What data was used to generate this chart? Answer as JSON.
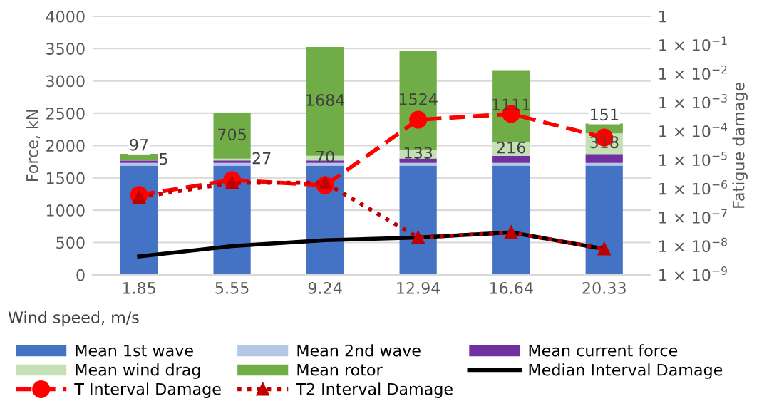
{
  "chart_data": {
    "type": "bar",
    "stacked": true,
    "xlabel": "Wind speed, m/s",
    "ylabel": "Force, kN",
    "y2label": "Fatigue damage",
    "categories": [
      "1.85",
      "5.55",
      "9.24",
      "12.94",
      "16.64",
      "20.33"
    ],
    "ylim": [
      0,
      4000
    ],
    "yticks": [
      0,
      500,
      1000,
      1500,
      2000,
      2500,
      3000,
      3500,
      4000
    ],
    "log": "y2",
    "y2lim": [
      1e-09,
      1
    ],
    "y2ticks": [
      {
        "value": 1e-09,
        "label": "1 × 10$^{−9}$"
      },
      {
        "value": 1e-08,
        "label": "1 × 10$^{−8}$"
      },
      {
        "value": 1e-07,
        "label": "1 × 10$^{−7}$"
      },
      {
        "value": 1e-06,
        "label": "1 × 10$^{−6}$"
      },
      {
        "value": 1e-05,
        "label": "1 × 10$^{−5}$"
      },
      {
        "value": 0.0001,
        "label": "1 × 10$^{−4}$"
      },
      {
        "value": 0.001,
        "label": "1 × 10$^{−3}$"
      },
      {
        "value": 0.01,
        "label": "1 × 10$^{−2}$"
      },
      {
        "value": 0.1,
        "label": "1 × 10$^{−1}$"
      },
      {
        "value": 1,
        "label": "1"
      }
    ],
    "grid": "y",
    "legend": "bottom",
    "series": [
      {
        "name": "Mean 1st wave",
        "color": "#4472c4",
        "values": [
          1690,
          1690,
          1690,
          1690,
          1690,
          1690
        ]
      },
      {
        "name": "Mean 2nd wave",
        "color": "#b4c7e7",
        "values": [
          40,
          40,
          40,
          40,
          40,
          40
        ]
      },
      {
        "name": "Mean current force",
        "color": "#7030a0",
        "values": [
          40,
          40,
          40,
          70,
          110,
          140
        ]
      },
      {
        "name": "Mean wind drag",
        "color": "#c5e0b4",
        "values": [
          5,
          27,
          70,
          133,
          216,
          318
        ],
        "value_labels": [
          "5",
          "27",
          "70",
          "133",
          "216",
          "318"
        ]
      },
      {
        "name": "Mean rotor",
        "color": "#70ad47",
        "values": [
          97,
          705,
          1684,
          1524,
          1111,
          151
        ],
        "value_labels": [
          "97",
          "705",
          "1684",
          "1524",
          "1111",
          "151"
        ]
      },
      {
        "name": "Median Interval Damage",
        "type": "line",
        "axis": "y2",
        "color": "#000000",
        "line_style": "solid",
        "marker": "none",
        "values": [
          4.4e-09,
          1e-08,
          1.6e-08,
          2e-08,
          3e-08,
          8e-09
        ]
      },
      {
        "name": "T Interval Damage",
        "type": "line",
        "axis": "y2",
        "color": "#ff0000",
        "line_style": "dashed",
        "marker": "circle",
        "values": [
          6e-07,
          2e-06,
          1.3e-06,
          0.00025,
          0.0004,
          6e-05
        ]
      },
      {
        "name": "T2 Interval Damage",
        "type": "line",
        "axis": "y2",
        "color": "#c00000",
        "line_style": "dotted",
        "marker": "triangle",
        "values": [
          5e-07,
          1.6e-06,
          1.6e-06,
          2e-08,
          3e-08,
          8e-09
        ]
      }
    ]
  }
}
